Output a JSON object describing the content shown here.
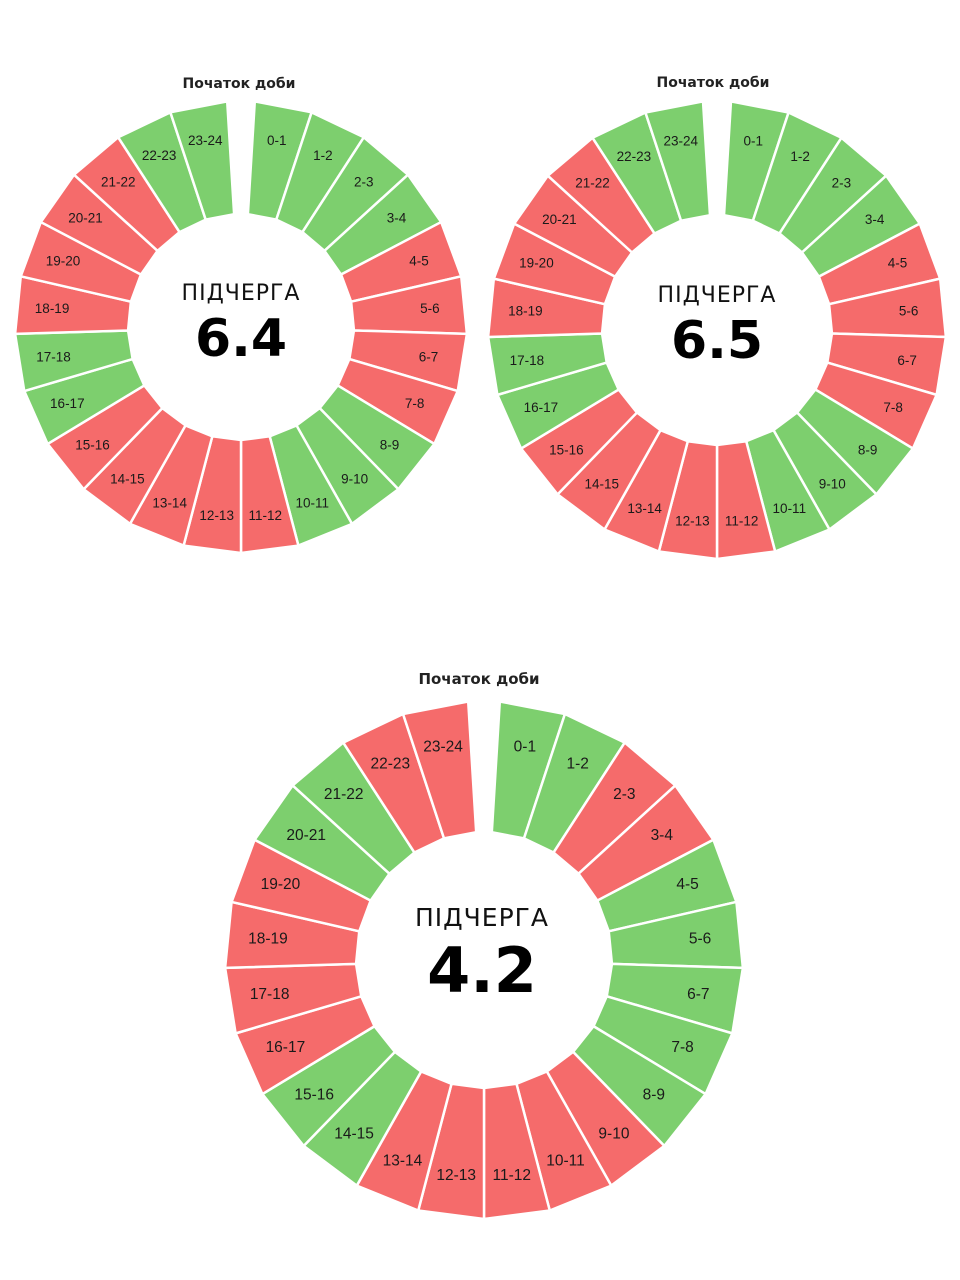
{
  "colors": {
    "on": "#7dcf6e",
    "off": "#f56b6b",
    "separator": "#ffffff",
    "text": "#1a1a1a"
  },
  "schedules": [
    {
      "caption": "ПІДЧЕРГА",
      "group": "6.4",
      "start_label": "Початок доби",
      "hours": [
        {
          "label": "0-1",
          "state": "on"
        },
        {
          "label": "1-2",
          "state": "on"
        },
        {
          "label": "2-3",
          "state": "on"
        },
        {
          "label": "3-4",
          "state": "on"
        },
        {
          "label": "4-5",
          "state": "off"
        },
        {
          "label": "5-6",
          "state": "off"
        },
        {
          "label": "6-7",
          "state": "off"
        },
        {
          "label": "7-8",
          "state": "off"
        },
        {
          "label": "8-9",
          "state": "on"
        },
        {
          "label": "9-10",
          "state": "on"
        },
        {
          "label": "10-11",
          "state": "on"
        },
        {
          "label": "11-12",
          "state": "off"
        },
        {
          "label": "12-13",
          "state": "off"
        },
        {
          "label": "13-14",
          "state": "off"
        },
        {
          "label": "14-15",
          "state": "off"
        },
        {
          "label": "15-16",
          "state": "off"
        },
        {
          "label": "16-17",
          "state": "on"
        },
        {
          "label": "17-18",
          "state": "on"
        },
        {
          "label": "18-19",
          "state": "off"
        },
        {
          "label": "19-20",
          "state": "off"
        },
        {
          "label": "20-21",
          "state": "off"
        },
        {
          "label": "21-22",
          "state": "off"
        },
        {
          "label": "22-23",
          "state": "on"
        },
        {
          "label": "23-24",
          "state": "on"
        }
      ]
    },
    {
      "caption": "ПІДЧЕРГА",
      "group": "6.5",
      "start_label": "Початок доби",
      "hours": [
        {
          "label": "0-1",
          "state": "on"
        },
        {
          "label": "1-2",
          "state": "on"
        },
        {
          "label": "2-3",
          "state": "on"
        },
        {
          "label": "3-4",
          "state": "on"
        },
        {
          "label": "4-5",
          "state": "off"
        },
        {
          "label": "5-6",
          "state": "off"
        },
        {
          "label": "6-7",
          "state": "off"
        },
        {
          "label": "7-8",
          "state": "off"
        },
        {
          "label": "8-9",
          "state": "on"
        },
        {
          "label": "9-10",
          "state": "on"
        },
        {
          "label": "10-11",
          "state": "on"
        },
        {
          "label": "11-12",
          "state": "off"
        },
        {
          "label": "12-13",
          "state": "off"
        },
        {
          "label": "13-14",
          "state": "off"
        },
        {
          "label": "14-15",
          "state": "off"
        },
        {
          "label": "15-16",
          "state": "off"
        },
        {
          "label": "16-17",
          "state": "on"
        },
        {
          "label": "17-18",
          "state": "on"
        },
        {
          "label": "18-19",
          "state": "off"
        },
        {
          "label": "19-20",
          "state": "off"
        },
        {
          "label": "20-21",
          "state": "off"
        },
        {
          "label": "21-22",
          "state": "off"
        },
        {
          "label": "22-23",
          "state": "on"
        },
        {
          "label": "23-24",
          "state": "on"
        }
      ]
    },
    {
      "caption": "ПІДЧЕРГА",
      "group": "4.2",
      "start_label": "Початок доби",
      "hours": [
        {
          "label": "0-1",
          "state": "on"
        },
        {
          "label": "1-2",
          "state": "on"
        },
        {
          "label": "2-3",
          "state": "off"
        },
        {
          "label": "3-4",
          "state": "off"
        },
        {
          "label": "4-5",
          "state": "on"
        },
        {
          "label": "5-6",
          "state": "on"
        },
        {
          "label": "6-7",
          "state": "on"
        },
        {
          "label": "7-8",
          "state": "on"
        },
        {
          "label": "8-9",
          "state": "on"
        },
        {
          "label": "9-10",
          "state": "off"
        },
        {
          "label": "10-11",
          "state": "off"
        },
        {
          "label": "11-12",
          "state": "off"
        },
        {
          "label": "12-13",
          "state": "off"
        },
        {
          "label": "13-14",
          "state": "off"
        },
        {
          "label": "14-15",
          "state": "on"
        },
        {
          "label": "15-16",
          "state": "on"
        },
        {
          "label": "16-17",
          "state": "off"
        },
        {
          "label": "17-18",
          "state": "off"
        },
        {
          "label": "18-19",
          "state": "off"
        },
        {
          "label": "19-20",
          "state": "off"
        },
        {
          "label": "20-21",
          "state": "on"
        },
        {
          "label": "21-22",
          "state": "on"
        },
        {
          "label": "22-23",
          "state": "off"
        },
        {
          "label": "23-24",
          "state": "off"
        }
      ]
    }
  ]
}
